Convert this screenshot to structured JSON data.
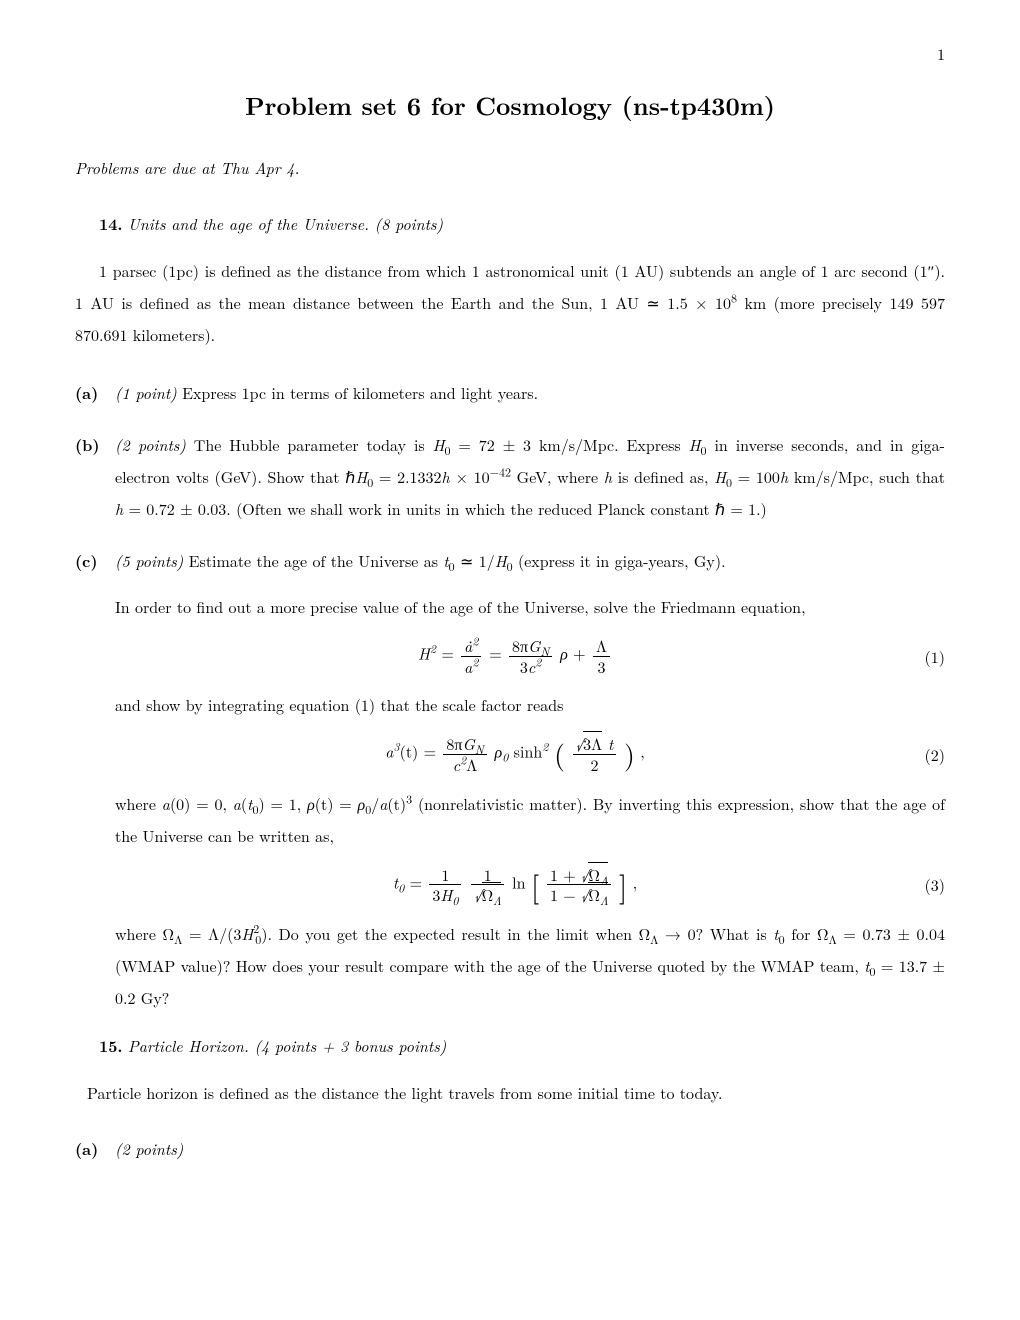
{
  "page_number": "1",
  "title": "Problem set 6 for Cosmology (ns-tp430m)",
  "due": "Problems are due at Thu Apr 4.",
  "p14": {
    "num": "14.",
    "title": "Units and the age of the Universe.",
    "points": "(8 points)",
    "intro_1": "1 parsec (1pc) is defined as the distance from which 1 astronomical unit (1 AU) subtends an angle of 1 arc second (1″). 1 AU is defined as the mean distance between the Earth and the Sun, 1 AU ≃ 1.5 × 10",
    "intro_sup": "8",
    "intro_2": " km (more precisely 149 597 870.691 kilometers).",
    "a": {
      "label": "(a)",
      "pts": "(1 point)",
      "text": " Express 1pc in terms of kilometers and light years."
    },
    "b": {
      "label": "(b)",
      "pts": "(2 points)",
      "t1": " The Hubble parameter today is ",
      "h0": "H",
      "h0sub": "0",
      "t2": " = 72 ± 3 km/s/Mpc. Express ",
      "t3": " in inverse seconds, and in giga-electron volts (GeV). Show that ℏ",
      "t4": " = 2.1332",
      "hvar": "h",
      "t5": " × 10",
      "exp42": "−42",
      "t6": " GeV, where ",
      "t7": " is defined as, ",
      "t8": " = 100",
      "t9": " km/s/Mpc, such that ",
      "t10": " = 0.72 ± 0.03. (Often we shall work in units in which the reduced Planck constant ℏ = 1.)"
    },
    "c": {
      "label": "(c)",
      "pts": "(5 points)",
      "t1": " Estimate the age of the Universe as ",
      "t0": "t",
      "sub0": "0",
      "t2": " ≃ 1/",
      "t3": " (express it in giga-years, Gy).",
      "p2": "In order to find out a more precise value of the age of the Universe, solve the Friedmann equation,",
      "eq1_num": "(1)",
      "eq1": {
        "H2": "H",
        "H2s": "2",
        "eq": " = ",
        "ad2": "ȧ",
        "ad2s": "2",
        "a2": "a",
        "a2s": "2",
        "eq2": " = ",
        "pi8": "8π",
        "GN": "G",
        "GNs": "N",
        "c3": "3",
        "c": "c",
        "c2": "2",
        "rho": "ρ",
        "plus": " + ",
        "Lam": "Λ",
        "three": "3"
      },
      "p3": "and show by integrating equation (1) that the scale factor reads",
      "eq2_num": "(2)",
      "eq2": {
        "a": "a",
        "a3": "3",
        "t": "(t) = ",
        "pi8": "8π",
        "GN": "G",
        "GNs": "N",
        "c": "c",
        "c2": "2",
        "Lam": "Λ",
        "rho0": "ρ",
        "rho0s": "0",
        "sinh": " sinh",
        "s2": "2",
        "br1": " ⎛",
        "br2": "⎞ ,",
        "sq3L": "3Λ",
        "tv": " t",
        "two": "2"
      },
      "p4a": "where ",
      "p4b": "a",
      "p4c": "(0) = 0, ",
      "p4d": "a",
      "p4e": "(",
      "p4f": ") = 1, ",
      "p4g": "ρ",
      "p4h": "(t) = ",
      "p4i": "ρ",
      "p4j": "/",
      "p4k": "a",
      "p4l": "(t)",
      "p4m": "3",
      "p4n": " (nonrelativistic matter). By inverting this expression, show that the age of the Universe can be written as,",
      "eq3_num": "(3)",
      "eq3": {
        "t0": "t",
        "t0s": "0",
        "eq": " = ",
        "one": "1",
        "H3": "3",
        "H": "H",
        "Hs": "0",
        "OmL": "Ω",
        "OmLs": "Λ",
        "ln": " ln ",
        "br1": "⎡",
        "br2": "⎤ ,",
        "top1": "1 + ",
        "bot1": "1 − "
      },
      "p5a": "where Ω",
      "p5b": "Λ",
      "p5c": " = Λ/(3",
      "p5d": "H",
      "p5e": "2",
      "p5f": "0",
      "p5g": "). Do you get the expected result in the limit when Ω",
      "p5h": " → 0? What is ",
      "p5i": " for Ω",
      "p5j": " = 0.73 ± 0.04 (WMAP value)? How does your result compare with the age of the Universe quoted by the WMAP team, ",
      "p5k": " = 13.7 ± 0.2 Gy?"
    }
  },
  "p15": {
    "num": "15.",
    "title": "Particle Horizon.",
    "points": "(4 points + 3 bonus points)",
    "intro": "Particle horizon is defined as the distance the light travels from some initial time to today.",
    "a": {
      "label": "(a)",
      "pts": "(2 points)"
    }
  }
}
